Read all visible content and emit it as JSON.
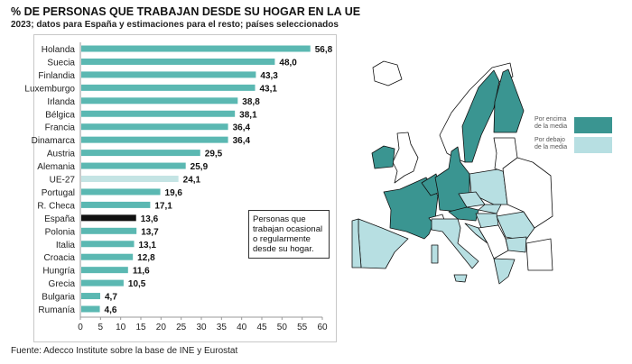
{
  "title": "% DE PERSONAS QUE TRABAJAN DESDE SU HOGAR EN LA UE",
  "subtitle": "2023; datos para España y estimaciones para el resto; países seleccionados",
  "source": "Fuente: Adecco Institute sobre la base de INE y Eurostat",
  "note": "Personas que trabajan ocasional o regularmente desde su hogar.",
  "colors": {
    "above": "#3a9591",
    "below": "#b7dfe2",
    "bar": "#5bb8b2",
    "eu": "#c4e4e4",
    "spain": "#111111"
  },
  "legend": [
    {
      "label": "Por encima de la media",
      "color": "#3a9591"
    },
    {
      "label": "Por debajo de la media",
      "color": "#b7dfe2"
    }
  ],
  "chart_data": {
    "type": "bar",
    "orientation": "horizontal",
    "title": "% DE PERSONAS QUE TRABAJAN DESDE SU HOGAR EN LA UE",
    "categories": [
      "Holanda",
      "Suecia",
      "Finlandia",
      "Luxemburgo",
      "Irlanda",
      "Bélgica",
      "Francia",
      "Dinamarca",
      "Austria",
      "Alemania",
      "UE-27",
      "Portugal",
      "R. Checa",
      "España",
      "Polonia",
      "Italia",
      "Croacia",
      "Hungría",
      "Grecia",
      "Bulgaria",
      "Rumanía"
    ],
    "values": [
      56.8,
      48.0,
      43.3,
      43.1,
      38.8,
      38.1,
      36.4,
      36.4,
      29.5,
      25.9,
      24.1,
      19.6,
      17.1,
      13.6,
      13.7,
      13.1,
      12.8,
      11.6,
      10.5,
      4.7,
      4.6
    ],
    "labels": [
      "56,8",
      "48,0",
      "43,3",
      "43,1",
      "38,8",
      "38,1",
      "36,4",
      "36,4",
      "29,5",
      "25,9",
      "24,1",
      "19,6",
      "17,1",
      "13,6",
      "13,7",
      "13,1",
      "12,8",
      "11,6",
      "10,5",
      "4,7",
      "4,6"
    ],
    "highlight": {
      "UE-27": "eu",
      "España": "spain"
    },
    "xlim": [
      0,
      60
    ],
    "xticks": [
      "0",
      "5",
      "10",
      "15",
      "20",
      "25",
      "30",
      "35",
      "40",
      "45",
      "50",
      "55",
      "60"
    ],
    "grid": false
  }
}
